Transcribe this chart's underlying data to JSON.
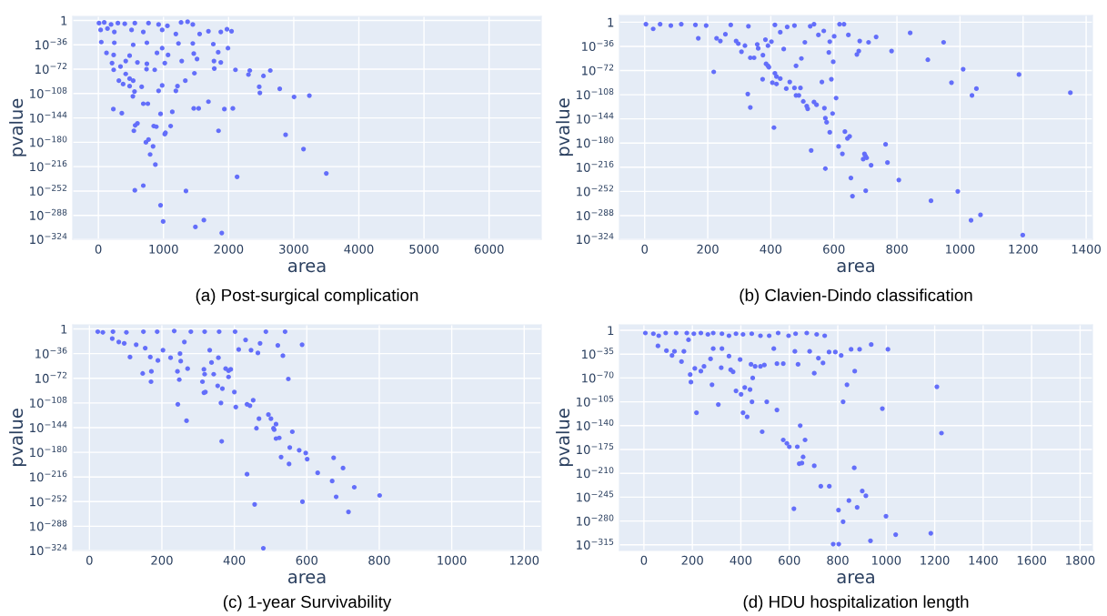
{
  "chart_data": [
    {
      "type": "scatter",
      "title": "(a) Post-surgical complication",
      "xlabel": "area",
      "ylabel": "pvalue",
      "log": true,
      "grid": true,
      "marker": "circle",
      "xlim": [
        -393,
        6800
      ],
      "xticks": [
        0,
        1000,
        2000,
        3000,
        4000,
        5000,
        6000
      ],
      "ylim": [
        5e-324,
        1000000.0
      ],
      "yticks": [
        1,
        {
          "value": 1e-36,
          "label": "10$^{−36}$"
        },
        {
          "value": 1e-72,
          "label": "10$^{−72}$"
        },
        {
          "value": 1e-108,
          "label": "10$^{−108}$"
        },
        {
          "value": 1e-144,
          "label": "10$^{−144}$"
        },
        {
          "value": 1e-180,
          "label": "10$^{−180}$"
        },
        {
          "value": 1e-216,
          "label": "10$^{−216}$"
        },
        {
          "value": 1e-252,
          "label": "10$^{−252}$"
        },
        {
          "value": 1e-288,
          "label": "10$^{−288}$"
        },
        {
          "value": 5e-324,
          "label": "10$^{−324}$"
        }
      ],
      "series": [
        {
          "color": "#636efa",
          "x": [
            10,
            90,
            195,
            300,
            405,
            560,
            770,
            925,
            1060,
            1270,
            1370,
            1450,
            35,
            140,
            245,
            510,
            690,
            980,
            1190,
            1555,
            1690,
            1880,
            1975,
            2045,
            45,
            245,
            535,
            745,
            980,
            1230,
            1450,
            1765,
            1990,
            125,
            235,
            480,
            900,
            1070,
            1465,
            1515,
            1840,
            1880,
            1775,
            210,
            420,
            600,
            745,
            1020,
            1280,
            235,
            340,
            420,
            480,
            740,
            865,
            1475,
            1780,
            2105,
            2325,
            2305,
            2535,
            2640,
            315,
            380,
            535,
            480,
            665,
            980,
            1215,
            1335,
            2470,
            2480,
            2785,
            3005,
            3240,
            530,
            555,
            925,
            1190,
            690,
            760,
            230,
            1135,
            1465,
            1540,
            1690,
            1935,
            2065,
            360,
            955,
            545,
            565,
            600,
            850,
            890,
            1030,
            1020,
            1110,
            1845,
            770,
            730,
            840,
            795,
            875,
            2875,
            3150,
            2130,
            3500,
            560,
            690,
            1345,
            955,
            995,
            1620,
            1490,
            1895
          ],
          "values": [
            0.0001,
            0.001,
            1e-06,
            0.0001,
            1e-05,
            0.0001,
            0.0001,
            1e-06,
            1e-08,
            0.001,
            0.01,
            1e-06,
            1e-14,
            1e-12,
            1e-17,
            1e-14,
            1e-17,
            1e-14,
            1e-20,
            1e-20,
            1e-16,
            1e-17,
            1e-13,
            1e-16,
            1e-32,
            1e-33,
            1e-36,
            1e-33,
            1e-41,
            1e-34,
            1e-34,
            1e-35,
            1e-41,
            1e-48,
            1e-51,
            1e-52,
            1e-48,
            1e-51,
            1e-49,
            1e-57,
            1e-47,
            1e-62,
            1e-60,
            1e-63,
            1e-60,
            1e-62,
            1e-64,
            1e-63,
            1e-60,
            1e-73,
            1e-68,
            1e-79,
            1e-86,
            1e-72,
            1e-73,
            1e-78,
            1e-71,
            1e-73,
            1e-74,
            1e-80,
            1e-82,
            1e-74,
            1e-89,
            1e-94,
            1e-89,
            1e-97,
            1e-98,
            1e-96,
            1e-97,
            1e-89,
            1e-98,
            1e-107,
            1e-101,
            1e-113,
            1e-111,
            1e-112,
            1e-105,
            1e-104,
            1e-104,
            1e-123,
            1e-123,
            1e-131,
            1e-135,
            1e-130,
            1e-130,
            1e-120,
            1e-131,
            1e-130,
            1e-137,
            1e-138,
            1e-163,
            1e-155,
            1e-152,
            1e-156,
            1e-157,
            1e-166,
            1e-168,
            1e-156,
            1e-163,
            1e-176,
            1e-180,
            1e-186,
            1e-198,
            1e-213,
            1e-169,
            1e-190,
            1e-231,
            1e-226,
            1e-251,
            1e-244,
            1e-252,
            1e-273,
            1e-297,
            1e-295,
            1e-305,
            1e-314
          ]
        }
      ]
    },
    {
      "type": "scatter",
      "title": "(b) Clavien-Dindo classification",
      "xlabel": "area",
      "ylabel": "pvalue",
      "log": true,
      "grid": true,
      "marker": "circle",
      "xlim": [
        -80,
        1420
      ],
      "xticks": [
        0,
        200,
        400,
        600,
        800,
        1000,
        1200,
        1400
      ],
      "ylim": [
        5e-324,
        10000000000.0
      ],
      "yticks": [
        1,
        {
          "value": 1e-36,
          "label": "10$^{−36}$"
        },
        {
          "value": 1e-72,
          "label": "10$^{−72}$"
        },
        {
          "value": 1e-108,
          "label": "10$^{−108}$"
        },
        {
          "value": 1e-144,
          "label": "10$^{−144}$"
        },
        {
          "value": 1e-180,
          "label": "10$^{−180}$"
        },
        {
          "value": 1e-216,
          "label": "10$^{−216}$"
        },
        {
          "value": 1e-252,
          "label": "10$^{−252}$"
        },
        {
          "value": 1e-288,
          "label": "10$^{−288}$"
        },
        {
          "value": 5e-324,
          "label": "10$^{−324}$"
        }
      ],
      "series": [
        {
          "color": "#636efa",
          "x": [
            4,
            27,
            49,
            83,
            116,
            161,
            170,
            195,
            228,
            240,
            256,
            273,
            290,
            297,
            307,
            318,
            329,
            335,
            347,
            357,
            360,
            375,
            383,
            391,
            385,
            394,
            402,
            413,
            430,
            441,
            452,
            475,
            480,
            497,
            508,
            525,
            537,
            551,
            568,
            587,
            584,
            601,
            598,
            618,
            632,
            646,
            673,
            679,
            682,
            710,
            734,
            783,
            842,
            898,
            948,
            1010,
            973,
            1052,
            1038,
            1187,
            1350,
            219,
            374,
            391,
            413,
            418,
            405,
            418,
            430,
            449,
            460,
            475,
            494,
            480,
            489,
            503,
            514,
            517,
            537,
            545,
            562,
            592,
            607,
            570,
            573,
            577,
            596,
            587,
            327,
            335,
            410,
            635,
            643,
            650,
            615,
            627,
            528,
            573,
            697,
            700,
            693,
            704,
            718,
            764,
            770,
            654,
            806,
            701,
            659,
            908,
            993,
            1035,
            1065,
            1199
          ],
          "values": [
            0.001,
            1e-10,
            0.001,
            1e-05,
            0.001,
            0.0001,
            1e-24,
            1e-05,
            1e-24,
            1e-28,
            1e-18,
            0.0001,
            1e-28,
            1e-32,
            1e-44,
            1e-35,
            1e-06,
            1e-53,
            1e-53,
            1e-33,
            1e-39,
            1e-49,
            1e-26,
            1e-35,
            1e-62,
            1e-67,
            1e-29,
            0.0001,
            1e-15,
            1e-40,
            1e-07,
            1e-05,
            1e-65,
            1e-54,
            1e-30,
            1e-06,
            0.001,
            1e-19,
            1e-13,
            1e-29,
            1e-45,
            1e-21,
            1e-59,
            0.001,
            0.001,
            1e-19,
            1e-48,
            1e-43,
            1e-28,
            1e-30,
            1e-22,
            1e-43,
            1e-16,
            1e-56,
            1e-30,
            1e-70,
            1e-90,
            1e-99,
            1e-109,
            1e-78,
            1e-105,
            1e-74,
            1e-85,
            1e-65,
            1e-76,
            1e-81,
            1e-90,
            1e-92,
            1e-84,
            1e-99,
            1e-89,
            1e-98,
            1e-98,
            1e-109,
            1e-109,
            1e-118,
            1e-125,
            1e-129,
            1e-119,
            1e-123,
            1e-89,
            1e-85,
            1e-113,
            1e-128,
            1e-143,
            1e-149,
            1e-136,
            1e-164,
            1e-107,
            1e-127,
            1e-157,
            1e-163,
            1e-173,
            1e-170,
            1e-185,
            1e-196,
            1e-191,
            1e-218,
            1e-196,
            1e-199,
            1e-204,
            1e-202,
            1e-213,
            1e-182,
            1e-209,
            1e-232,
            1e-235,
            1e-251,
            1e-259,
            1e-266,
            1e-252,
            1e-295,
            1e-287,
            1e-317
          ]
        }
      ]
    },
    {
      "type": "scatter",
      "title": "(c) 1-year Survivability",
      "xlabel": "area",
      "ylabel": "pvalue",
      "log": true,
      "grid": true,
      "marker": "circle",
      "xlim": [
        -46,
        1247
      ],
      "xticks": [
        0,
        200,
        400,
        600,
        800,
        1000,
        1200
      ],
      "ylim": [
        5e-324,
        1000000.0
      ],
      "yticks": [
        1,
        {
          "value": 1e-36,
          "label": "10$^{−36}$"
        },
        {
          "value": 1e-72,
          "label": "10$^{−72}$"
        },
        {
          "value": 1e-108,
          "label": "10$^{−108}$"
        },
        {
          "value": 1e-144,
          "label": "10$^{−144}$"
        },
        {
          "value": 1e-180,
          "label": "10$^{−180}$"
        },
        {
          "value": 1e-216,
          "label": "10$^{−216}$"
        },
        {
          "value": 1e-252,
          "label": "10$^{−252}$"
        },
        {
          "value": 1e-288,
          "label": "10$^{−288}$"
        },
        {
          "value": 5e-324,
          "label": "10$^{−324}$"
        }
      ],
      "series": [
        {
          "color": "#636efa",
          "x": [
            23,
            37,
            65,
            102,
            149,
            187,
            234,
            280,
            318,
            358,
            402,
            487,
            540,
            63,
            81,
            96,
            129,
            112,
            154,
            147,
            168,
            171,
            170,
            189,
            203,
            224,
            243,
            244,
            248,
            250,
            252,
            262,
            271,
            268,
            312,
            316,
            318,
            316,
            320,
            332,
            337,
            343,
            354,
            356,
            367,
            363,
            365,
            376,
            384,
            384,
            390,
            400,
            404,
            412,
            431,
            446,
            435,
            443,
            452,
            435,
            465,
            471,
            456,
            468,
            461,
            494,
            501,
            508,
            510,
            515,
            515,
            524,
            534,
            520,
            529,
            553,
            560,
            551,
            579,
            587,
            597,
            601,
            588,
            549,
            480,
            630,
            670,
            674,
            681,
            700,
            731,
            715,
            801
          ],
          "values": [
            0.0001,
            1e-05,
            0.0001,
            1e-05,
            0.0001,
            0.0001,
            0.001,
            0.0001,
            0.0001,
            0.0001,
            0.0001,
            0.0001,
            0.0001,
            1e-14,
            1e-19,
            1e-21,
            1e-23,
            1e-41,
            1e-28,
            1e-65,
            1e-41,
            1e-62,
            1e-77,
            1e-46,
            1e-31,
            1e-42,
            1e-62,
            1e-110,
            1e-74,
            1e-36,
            1e-47,
            1e-19,
            1e-58,
            1e-134,
            1e-77,
            1e-59,
            1e-66,
            1e-93,
            1e-92,
            1e-31,
            1e-49,
            1e-66,
            1e-83,
            1e-42,
            1e-87,
            1e-108,
            1e-164,
            1e-58,
            1e-61,
            1e-70,
            1e-59,
            1e-92,
            1e-114,
            1e-30,
            1e-16,
            1e-31,
            1e-110,
            1e-112,
            1e-104,
            1e-212,
            1e-35,
            1e-21,
            1e-256,
            1e-131,
            1e-145,
            1e-125,
            1e-131,
            1e-145,
            1e-147,
            1e-139,
            1e-160,
            1e-159,
            1e-39,
            1e-24,
            1e-187,
            1e-173,
            1e-150,
            1e-197,
            1e-177,
            1e-23,
            1e-181,
            1e-190,
            1e-252,
            1e-73,
            1e-320,
            1e-210,
            1e-222,
            1e-188,
            1e-245,
            1e-203,
            1e-231,
            1e-267,
            1e-243
          ]
        }
      ]
    },
    {
      "type": "scatter",
      "title": "(d) HDU hospitalization length",
      "xlabel": "area",
      "ylabel": "pvalue",
      "log": true,
      "grid": true,
      "marker": "circle",
      "xlim": [
        -101,
        1851
      ],
      "xticks": [
        0,
        200,
        400,
        600,
        800,
        1000,
        1200,
        1400,
        1600,
        1800
      ],
      "ylim": [
        5e-324,
        100000000.0
      ],
      "yticks": [
        1,
        {
          "value": 1e-35,
          "label": "10$^{−35}$"
        },
        {
          "value": 1e-70,
          "label": "10$^{−70}$"
        },
        {
          "value": 1e-105,
          "label": "10$^{−105}$"
        },
        {
          "value": 1e-140,
          "label": "10$^{−140}$"
        },
        {
          "value": 1e-175,
          "label": "10$^{−175}$"
        },
        {
          "value": 1e-210,
          "label": "10$^{−210}$"
        },
        {
          "value": 1e-245,
          "label": "10$^{−245}$"
        },
        {
          "value": 1e-280,
          "label": "10$^{−280}$"
        },
        {
          "value": 1e-315,
          "label": "10$^{−315}$"
        }
      ],
      "series": [
        {
          "color": "#636efa",
          "x": [
            6,
            39,
            61,
            90,
            133,
            177,
            206,
            235,
            264,
            286,
            322,
            351,
            380,
            409,
            445,
            481,
            517,
            554,
            597,
            626,
            672,
            713,
            746,
            58,
            93,
            116,
            126,
            155,
            165,
            184,
            191,
            194,
            210,
            217,
            235,
            248,
            275,
            281,
            286,
            319,
            307,
            322,
            351,
            358,
            368,
            380,
            397,
            401,
            409,
            416,
            426,
            438,
            442,
            446,
            449,
            459,
            481,
            497,
            507,
            488,
            536,
            549,
            549,
            575,
            575,
            590,
            600,
            619,
            623,
            633,
            636,
            645,
            641,
            652,
            657,
            665,
            684,
            703,
            703,
            720,
            730,
            739,
            765,
            764,
            790,
            803,
            814,
            822,
            822,
            838,
            846,
            855,
            870,
            868,
            880,
            890,
            901,
            916,
            935,
            938,
            984,
            999,
            1007,
            1039,
            781,
            804,
            1184,
            1209,
            1228
          ],
          "values": [
            0.0001,
            1e-05,
            1e-08,
            0.0001,
            0.0001,
            0.0001,
            1e-05,
            0.0001,
            1e-06,
            0.0001,
            1e-05,
            1e-08,
            1e-05,
            1e-06,
            1e-05,
            1e-08,
            1e-08,
            0.0001,
            1e-08,
            1e-05,
            0.0001,
            1e-06,
            1e-08,
            1e-23,
            1e-30,
            1e-37,
            1e-31,
            1e-46,
            1e-31,
            1e-14,
            1e-65,
            1e-76,
            1e-56,
            1e-121,
            1e-60,
            1e-53,
            1e-42,
            1e-80,
            1e-27,
            1e-55,
            1e-109,
            1e-27,
            1e-38,
            1e-58,
            1e-61,
            1e-89,
            1e-43,
            1e-94,
            1e-121,
            1e-84,
            1e-127,
            1e-87,
            1e-50,
            1e-105,
            1e-70,
            1e-53,
            1e-53,
            1e-51,
            1e-105,
            1e-149,
            1e-27,
            1e-49,
            1e-117,
            1e-49,
            1e-161,
            1e-166,
            1e-171,
            1e-262,
            1e-31,
            1e-171,
            1e-50,
            1e-140,
            1e-196,
            1e-195,
            1e-186,
            1e-161,
            1e-31,
            1e-63,
            1e-199,
            1e-41,
            1e-229,
            1e-48,
            1e-229,
            1e-32,
            1e-32,
            1e-264,
            1e-37,
            1e-105,
            1e-281,
            1e-80,
            1e-250,
            1e-28,
            1e-60,
            1e-202,
            1e-260,
            1e-28,
            1e-236,
            1e-243,
            1e-309,
            1e-21,
            1e-115,
            1e-273,
            1e-28,
            1e-300,
            1e-314,
            1e-314,
            1e-298,
            1e-83,
            1e-151
          ]
        }
      ]
    }
  ]
}
